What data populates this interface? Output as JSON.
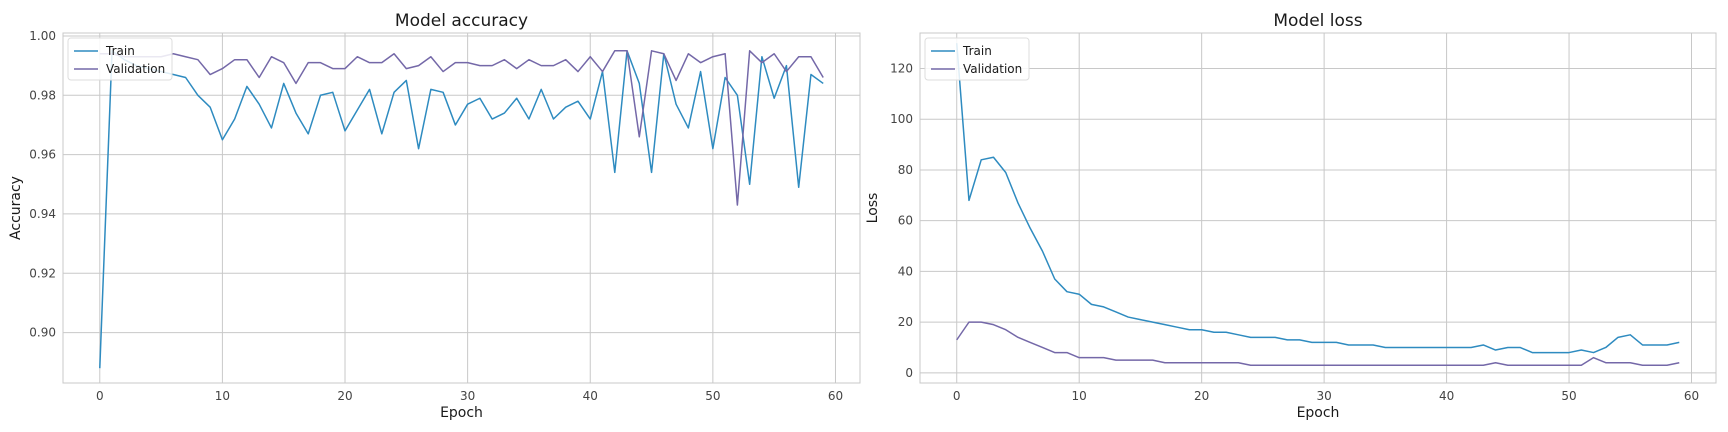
{
  "chart_data": [
    {
      "type": "line",
      "title": "Model accuracy",
      "xlabel": "Epoch",
      "ylabel": "Accuracy",
      "xlim": [
        -3,
        62
      ],
      "ylim": [
        0.883,
        1.001
      ],
      "xticks": [
        0,
        10,
        20,
        30,
        40,
        50,
        60
      ],
      "yticks": [
        0.9,
        0.92,
        0.94,
        0.96,
        0.98,
        1.0
      ],
      "ytick_labels": [
        "0.90",
        "0.92",
        "0.94",
        "0.96",
        "0.98",
        "1.00"
      ],
      "grid": true,
      "legend": "top-left",
      "x": [
        0,
        1,
        2,
        3,
        4,
        5,
        6,
        7,
        8,
        9,
        10,
        11,
        12,
        13,
        14,
        15,
        16,
        17,
        18,
        19,
        20,
        21,
        22,
        23,
        24,
        25,
        26,
        27,
        28,
        29,
        30,
        31,
        32,
        33,
        34,
        35,
        36,
        37,
        38,
        39,
        40,
        41,
        42,
        43,
        44,
        45,
        46,
        47,
        48,
        49,
        50,
        51,
        52,
        53,
        54,
        55,
        56,
        57,
        58,
        59
      ],
      "series": [
        {
          "name": "Train",
          "color": "#2e8bc0",
          "values": [
            0.888,
            0.995,
            0.992,
            0.99,
            0.989,
            0.988,
            0.987,
            0.986,
            0.98,
            0.976,
            0.965,
            0.972,
            0.983,
            0.977,
            0.969,
            0.984,
            0.974,
            0.967,
            0.98,
            0.981,
            0.968,
            0.975,
            0.982,
            0.967,
            0.981,
            0.985,
            0.962,
            0.982,
            0.981,
            0.97,
            0.977,
            0.979,
            0.972,
            0.974,
            0.979,
            0.972,
            0.982,
            0.972,
            0.976,
            0.978,
            0.972,
            0.988,
            0.954,
            0.995,
            0.984,
            0.954,
            0.994,
            0.977,
            0.969,
            0.988,
            0.962,
            0.986,
            0.98,
            0.95,
            0.993,
            0.979,
            0.99,
            0.949,
            0.987,
            0.984
          ]
        },
        {
          "name": "Validation",
          "color": "#7468a8",
          "values": [
            0.994,
            0.994,
            0.993,
            0.993,
            0.993,
            0.993,
            0.994,
            0.993,
            0.992,
            0.987,
            0.989,
            0.992,
            0.992,
            0.986,
            0.993,
            0.991,
            0.984,
            0.991,
            0.991,
            0.989,
            0.989,
            0.993,
            0.991,
            0.991,
            0.994,
            0.989,
            0.99,
            0.993,
            0.988,
            0.991,
            0.991,
            0.99,
            0.99,
            0.992,
            0.989,
            0.992,
            0.99,
            0.99,
            0.992,
            0.988,
            0.993,
            0.988,
            0.995,
            0.995,
            0.966,
            0.995,
            0.994,
            0.985,
            0.994,
            0.991,
            0.993,
            0.994,
            0.943,
            0.995,
            0.991,
            0.994,
            0.988,
            0.993,
            0.993,
            0.986
          ]
        }
      ]
    },
    {
      "type": "line",
      "title": "Model loss",
      "xlabel": "Epoch",
      "ylabel": "Loss",
      "xlim": [
        -3,
        62
      ],
      "ylim": [
        -4,
        134
      ],
      "xticks": [
        0,
        10,
        20,
        30,
        40,
        50,
        60
      ],
      "yticks": [
        0,
        20,
        40,
        60,
        80,
        100,
        120
      ],
      "ytick_labels": [
        "0",
        "20",
        "40",
        "60",
        "80",
        "100",
        "120"
      ],
      "grid": true,
      "legend": "top-left",
      "x": [
        0,
        1,
        2,
        3,
        4,
        5,
        6,
        7,
        8,
        9,
        10,
        11,
        12,
        13,
        14,
        15,
        16,
        17,
        18,
        19,
        20,
        21,
        22,
        23,
        24,
        25,
        26,
        27,
        28,
        29,
        30,
        31,
        32,
        33,
        34,
        35,
        36,
        37,
        38,
        39,
        40,
        41,
        42,
        43,
        44,
        45,
        46,
        47,
        48,
        49,
        50,
        51,
        52,
        53,
        54,
        55,
        56,
        57,
        58,
        59
      ],
      "series": [
        {
          "name": "Train",
          "color": "#2e8bc0",
          "values": [
            130,
            68,
            84,
            85,
            79,
            67,
            57,
            48,
            37,
            32,
            31,
            27,
            26,
            24,
            22,
            21,
            20,
            19,
            18,
            17,
            17,
            16,
            16,
            15,
            14,
            14,
            14,
            13,
            13,
            12,
            12,
            12,
            11,
            11,
            11,
            10,
            10,
            10,
            10,
            10,
            10,
            10,
            10,
            11,
            9,
            10,
            10,
            8,
            8,
            8,
            8,
            9,
            8,
            10,
            14,
            15,
            11,
            11,
            11,
            12
          ]
        },
        {
          "name": "Validation",
          "color": "#7468a8",
          "values": [
            13,
            20,
            20,
            19,
            17,
            14,
            12,
            10,
            8,
            8,
            6,
            6,
            6,
            5,
            5,
            5,
            5,
            4,
            4,
            4,
            4,
            4,
            4,
            4,
            3,
            3,
            3,
            3,
            3,
            3,
            3,
            3,
            3,
            3,
            3,
            3,
            3,
            3,
            3,
            3,
            3,
            3,
            3,
            3,
            4,
            3,
            3,
            3,
            3,
            3,
            3,
            3,
            6,
            4,
            4,
            4,
            3,
            3,
            3,
            4
          ]
        }
      ]
    }
  ]
}
